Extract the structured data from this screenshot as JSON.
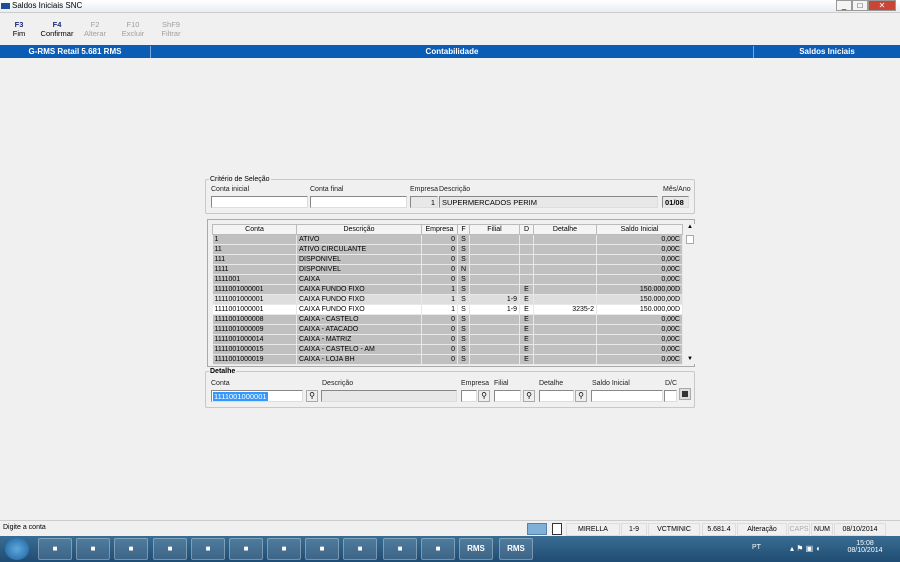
{
  "window": {
    "title": "Saldos Iniciais SNC",
    "min": "_",
    "max": "□",
    "close": "✕"
  },
  "toolbar": [
    {
      "key": "F3",
      "label": "Fim",
      "enabled": true
    },
    {
      "key": "F4",
      "label": "Confirmar",
      "enabled": true
    },
    {
      "key": "F2",
      "label": "Alterar",
      "enabled": false
    },
    {
      "key": "F10",
      "label": "Excluir",
      "enabled": false
    },
    {
      "key": "ShF9",
      "label": "Filtrar",
      "enabled": false
    }
  ],
  "header": {
    "app": "G-RMS Retail 5.681 RMS",
    "module": "Contabilidade",
    "screen": "Saldos Iniciais"
  },
  "criteria": {
    "legend": "Critério de Seleção",
    "conta_inicial_label": "Conta inicial",
    "conta_inicial": "",
    "conta_final_label": "Conta final",
    "conta_final": "",
    "empresa_label": "Empresa",
    "empresa": "1",
    "descricao_label": "Descrição",
    "descricao": "SUPERMERCADOS PERIM",
    "mes_ano_label": "Mês/Ano",
    "mes_ano": "01/08"
  },
  "grid": {
    "columns": [
      "Conta",
      "Descrição",
      "Empresa",
      "F",
      "Filial",
      "D",
      "Detalhe",
      "Saldo Inicial"
    ],
    "rows": [
      [
        "1",
        "ATIVO",
        "0",
        "S",
        "",
        "",
        "",
        "0,00C"
      ],
      [
        "11",
        "ATIVO CIRCULANTE",
        "0",
        "S",
        "",
        "",
        "",
        "0,00C"
      ],
      [
        "111",
        "DISPONIVEL",
        "0",
        "S",
        "",
        "",
        "",
        "0,00C"
      ],
      [
        "1111",
        "DISPONIVEL",
        "0",
        "N",
        "",
        "",
        "",
        "0,00C"
      ],
      [
        "1111001",
        "CAIXA",
        "0",
        "S",
        "",
        "",
        "",
        "0,00C"
      ],
      [
        "1111001000001",
        "CAIXA FUNDO FIXO",
        "1",
        "S",
        "",
        "E",
        "",
        "150.000,00D"
      ],
      [
        "1111001000001",
        "CAIXA FUNDO FIXO",
        "1",
        "S",
        "1-9",
        "E",
        "",
        "150.000,00D"
      ],
      [
        "1111001000001",
        "CAIXA FUNDO FIXO",
        "1",
        "S",
        "1-9",
        "E",
        "3235-2",
        "150.000,00D"
      ],
      [
        "1111001000008",
        "CAIXA - CASTELO",
        "0",
        "S",
        "",
        "E",
        "",
        "0,00C"
      ],
      [
        "1111001000009",
        "CAIXA - ATACADO",
        "0",
        "S",
        "",
        "E",
        "",
        "0,00C"
      ],
      [
        "1111001000014",
        "CAIXA - MATRIZ",
        "0",
        "S",
        "",
        "E",
        "",
        "0,00C"
      ],
      [
        "1111001000015",
        "CAIXA - CASTELO - AM",
        "0",
        "S",
        "",
        "E",
        "",
        "0,00C"
      ],
      [
        "1111001000019",
        "CAIXA - LOJA BH",
        "0",
        "S",
        "",
        "E",
        "",
        "0,00C"
      ]
    ]
  },
  "detail": {
    "legend": "Detalhe",
    "conta_label": "Conta",
    "conta": "1111001000001",
    "descricao_label": "Descrição",
    "descricao": "",
    "empresa_label": "Empresa",
    "empresa": "",
    "filial_label": "Filial",
    "filial": "",
    "detalhe_label": "Detalhe",
    "detalhe": "",
    "saldo_label": "Saldo Inicial",
    "saldo": "",
    "dc_label": "D/C",
    "dc": ""
  },
  "status": {
    "message": "Digite a conta",
    "user": "MIRELLA",
    "filial": "1-9",
    "program": "VCTMINIC",
    "version": "5.681.4",
    "mode": "Alteração",
    "caps": "CAPS",
    "num": "NUM",
    "date": "08/10/2014"
  },
  "taskbar": {
    "lang": "PT",
    "time": "15:08",
    "date": "08/10/2014",
    "apps": [
      "start",
      "ie",
      "explorer",
      "media",
      "chrome",
      "app",
      "folder",
      "lync",
      "outlook",
      "app2",
      "excel",
      "word",
      "RMS",
      "RMS"
    ]
  },
  "colors": {
    "header_blue": "#0b5cb5",
    "row_gray": "#c0c0c0"
  }
}
